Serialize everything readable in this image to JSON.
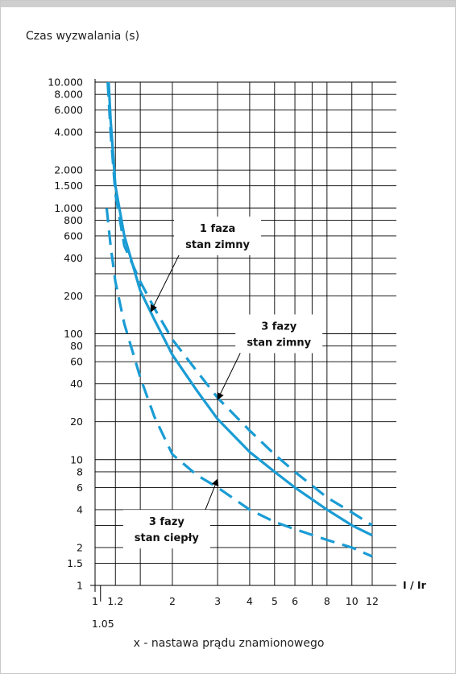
{
  "colors": {
    "curve": "#1a9cd4",
    "grid": "#000000",
    "text": "#111111"
  },
  "chart_data": {
    "type": "line",
    "title": "",
    "ylabel": "Czas wyzwalania (s)",
    "xlabel": "I / Ir",
    "x_scale": "log",
    "y_scale": "log",
    "xlim": [
      1,
      12
    ],
    "ylim": [
      1,
      10000
    ],
    "grid": true,
    "xticks": [
      {
        "v": 1,
        "label": "1"
      },
      {
        "v": 1.2,
        "label": "1.2"
      },
      {
        "v": 2,
        "label": "2"
      },
      {
        "v": 3,
        "label": "3"
      },
      {
        "v": 4,
        "label": "4"
      },
      {
        "v": 5,
        "label": "5"
      },
      {
        "v": 6,
        "label": "6"
      },
      {
        "v": 8,
        "label": "8"
      },
      {
        "v": 10,
        "label": "10"
      },
      {
        "v": 12,
        "label": "12"
      }
    ],
    "xtick_extra": {
      "v": 1.05,
      "label": "1.05"
    },
    "yticks": [
      {
        "v": 10000,
        "label": "10.000"
      },
      {
        "v": 8000,
        "label": "8.000"
      },
      {
        "v": 6000,
        "label": "6.000"
      },
      {
        "v": 4000,
        "label": "4.000"
      },
      {
        "v": 2000,
        "label": "2.000"
      },
      {
        "v": 1500,
        "label": "1.500"
      },
      {
        "v": 1000,
        "label": "1.000"
      },
      {
        "v": 800,
        "label": "800"
      },
      {
        "v": 600,
        "label": "600"
      },
      {
        "v": 400,
        "label": "400"
      },
      {
        "v": 200,
        "label": "200"
      },
      {
        "v": 100,
        "label": "100"
      },
      {
        "v": 80,
        "label": "80"
      },
      {
        "v": 60,
        "label": "60"
      },
      {
        "v": 40,
        "label": "40"
      },
      {
        "v": 20,
        "label": "20"
      },
      {
        "v": 10,
        "label": "10"
      },
      {
        "v": 8,
        "label": "8"
      },
      {
        "v": 6,
        "label": "6"
      },
      {
        "v": 4,
        "label": "4"
      },
      {
        "v": 2,
        "label": "2"
      },
      {
        "v": 1.5,
        "label": "1.5"
      },
      {
        "v": 1,
        "label": "1"
      }
    ],
    "series": [
      {
        "key": "phase1-cold",
        "style": "solid",
        "points": [
          [
            1.13,
            10000
          ],
          [
            1.15,
            5000
          ],
          [
            1.2,
            1500
          ],
          [
            1.3,
            600
          ],
          [
            1.5,
            220
          ],
          [
            1.7,
            130
          ],
          [
            2,
            68
          ],
          [
            2.5,
            35
          ],
          [
            3,
            21
          ],
          [
            4,
            11.5
          ],
          [
            5,
            8
          ],
          [
            6,
            6
          ],
          [
            8,
            4
          ],
          [
            10,
            3
          ],
          [
            12,
            2.5
          ]
        ]
      },
      {
        "key": "phases3-cold",
        "style": "dashed",
        "points": [
          [
            1.12,
            10000
          ],
          [
            1.15,
            4000
          ],
          [
            1.2,
            1300
          ],
          [
            1.3,
            500
          ],
          [
            1.5,
            260
          ],
          [
            1.7,
            160
          ],
          [
            2,
            90
          ],
          [
            2.5,
            50
          ],
          [
            3,
            31
          ],
          [
            4,
            17
          ],
          [
            5,
            11
          ],
          [
            6,
            8
          ],
          [
            8,
            5
          ],
          [
            10,
            3.8
          ],
          [
            12,
            3
          ]
        ]
      },
      {
        "key": "phases3-warm",
        "style": "dashed",
        "points": [
          [
            1.11,
            1000
          ],
          [
            1.15,
            500
          ],
          [
            1.2,
            260
          ],
          [
            1.3,
            120
          ],
          [
            1.5,
            45
          ],
          [
            1.7,
            22
          ],
          [
            2,
            11
          ],
          [
            2.5,
            7.5
          ],
          [
            3,
            6
          ],
          [
            4,
            4
          ],
          [
            5,
            3.2
          ],
          [
            6,
            2.8
          ],
          [
            8,
            2.3
          ],
          [
            10,
            2
          ],
          [
            12,
            1.7
          ]
        ]
      }
    ],
    "annotations": [
      {
        "key": "phase1-cold",
        "lines": [
          "1 faza",
          "stan zimny"
        ],
        "x": 3,
        "y": 600,
        "target_x": 1.65,
        "target_y": 150
      },
      {
        "key": "phases3-cold",
        "lines": [
          "3 fazy",
          "stan zimny"
        ],
        "x": 5.2,
        "y": 100,
        "target_x": 3,
        "target_y": 30
      },
      {
        "key": "phases3-warm",
        "lines": [
          "3 fazy",
          "stan ciepły"
        ],
        "x": 1.9,
        "y": 2.8,
        "target_x": 3,
        "target_y": 7
      }
    ]
  },
  "caption": "x - nastawa prądu znamionowego"
}
